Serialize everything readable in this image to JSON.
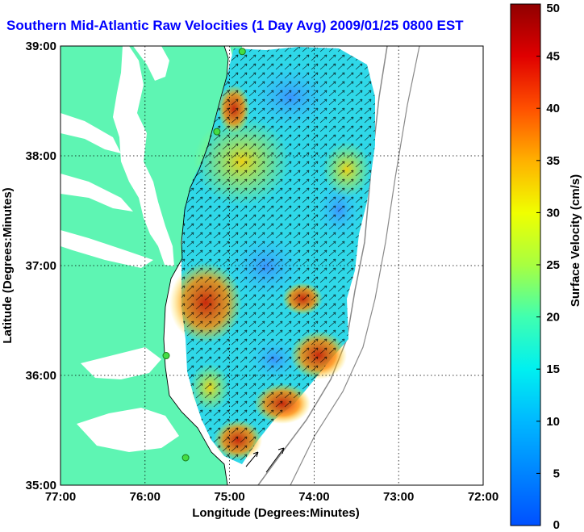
{
  "title": "Southern Mid-Atlantic Raw Velocities (1 Day Avg) 2009/01/25 0800 EST",
  "colors": {
    "land": "#5ef5b3",
    "background": "#ffffff",
    "title": "#0000ff",
    "site_marker": "#44dd44"
  },
  "chart_data": {
    "type": "heatmap",
    "xlabel": "Longitude (Degrees:Minutes)",
    "ylabel": "Latitude (Degrees:Minutes)",
    "x_ticks": [
      "77:00",
      "76:00",
      "75:00",
      "74:00",
      "73:00",
      "72:00"
    ],
    "y_ticks": [
      "39:00",
      "38:00",
      "37:00",
      "36:00",
      "35:00"
    ],
    "xlim": [
      -77,
      -72
    ],
    "ylim": [
      35,
      39
    ],
    "grid": true,
    "colorbar": {
      "label": "Surface Velocity (cm/s)",
      "range": [
        0,
        50
      ],
      "ticks": [
        "0",
        "5",
        "10",
        "15",
        "20",
        "25",
        "30",
        "35",
        "40",
        "45",
        "50"
      ]
    },
    "sites": [
      {
        "lon": -74.85,
        "lat": 38.95
      },
      {
        "lon": -75.15,
        "lat": 38.22
      },
      {
        "lon": -75.75,
        "lat": 36.18
      },
      {
        "lon": -75.52,
        "lat": 35.25
      }
    ]
  }
}
